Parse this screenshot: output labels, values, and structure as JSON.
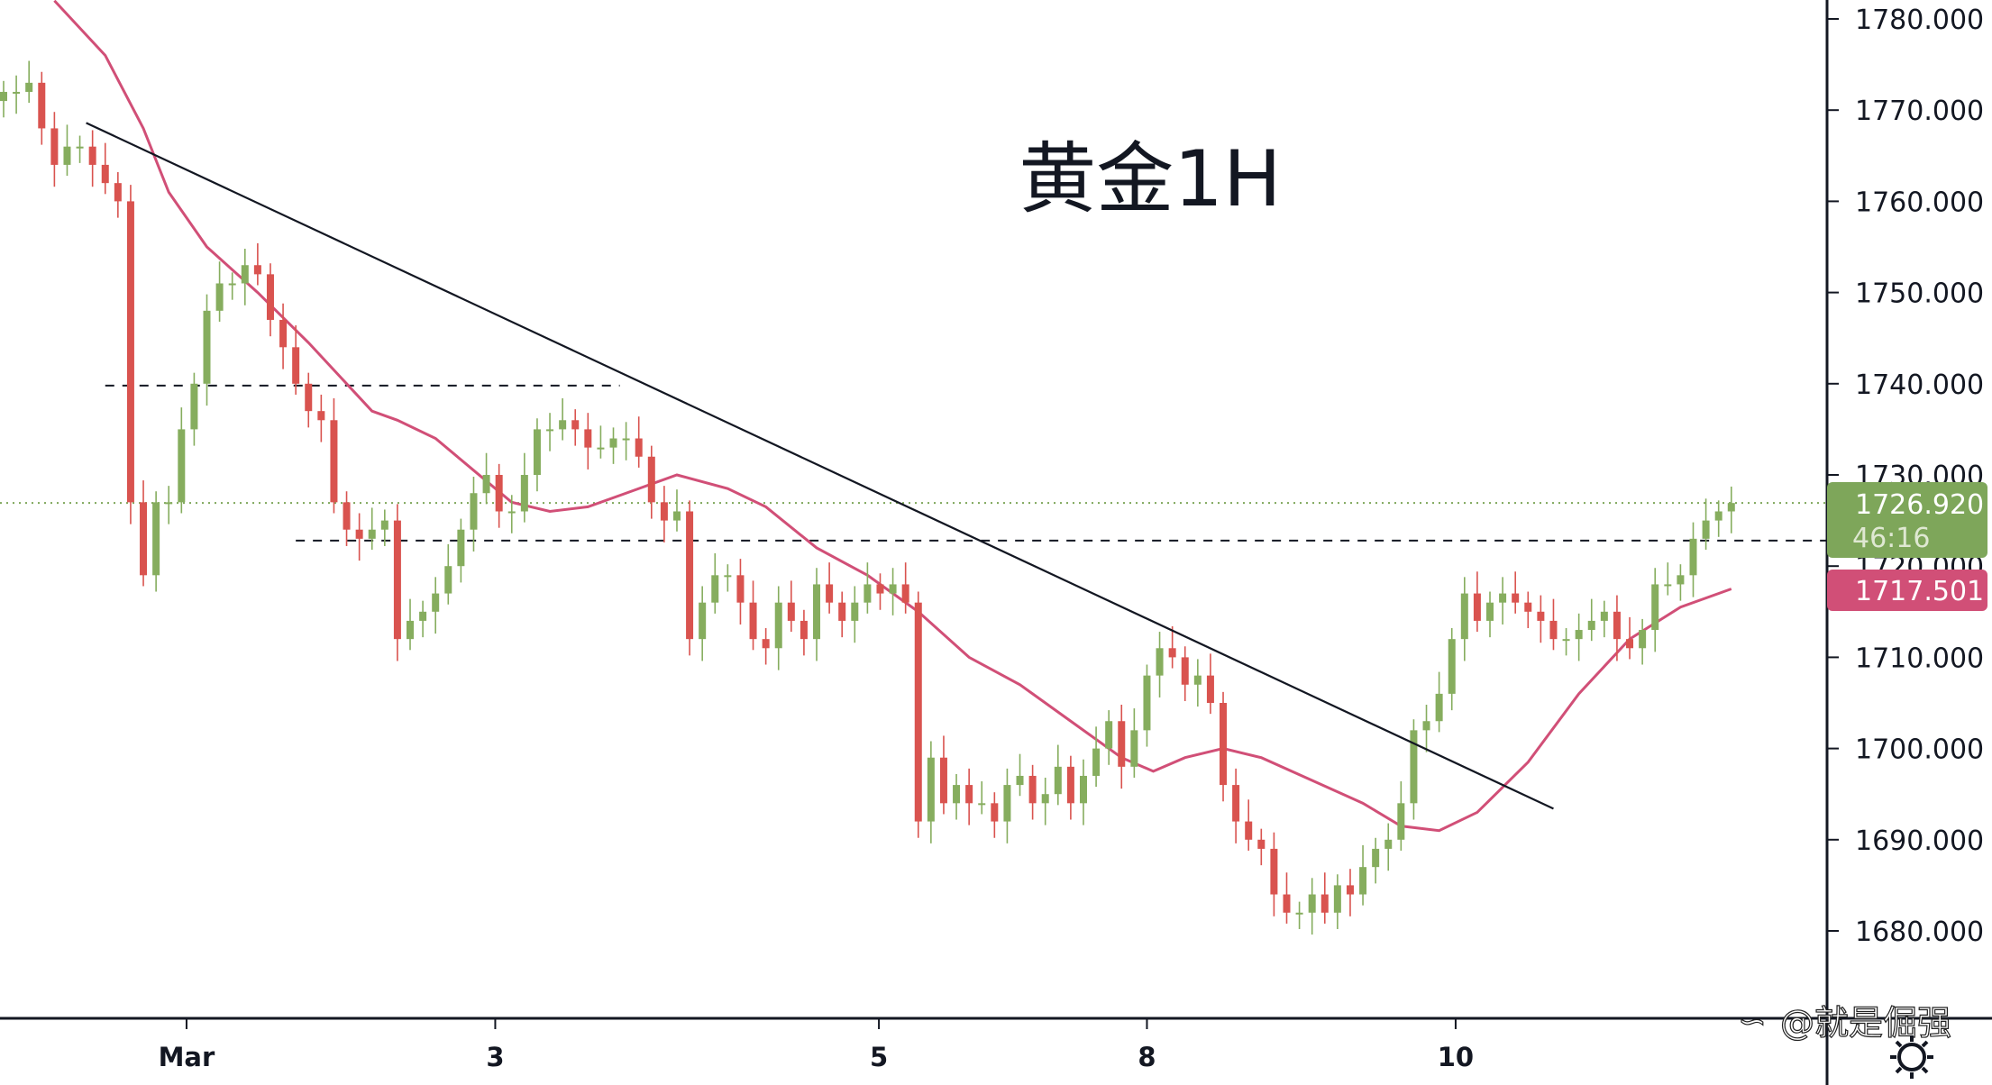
{
  "chart_data": {
    "type": "candlestick",
    "title": "黄金1H",
    "ylim": [
      1675,
      1782
    ],
    "y_ticks": [
      "1680.000",
      "1690.000",
      "1700.000",
      "1710.000",
      "1720.000",
      "1730.000",
      "1740.000",
      "1750.000",
      "1760.000",
      "1770.000",
      "1780.000"
    ],
    "x_ticks": [
      {
        "label": "Mar",
        "index": 14.4
      },
      {
        "label": "3",
        "index": 38.7
      },
      {
        "label": "5",
        "index": 68.9
      },
      {
        "label": "8",
        "index": 90.0
      },
      {
        "label": "10",
        "index": 114.3
      }
    ],
    "closes": [
      1772,
      1772,
      1773,
      1768,
      1764,
      1766,
      1766,
      1764,
      1762,
      1760,
      1727,
      1719,
      1727,
      1727,
      1735,
      1740,
      1748,
      1751,
      1751,
      1753,
      1752,
      1747,
      1744,
      1740,
      1737,
      1736,
      1727,
      1724,
      1723,
      1724,
      1725,
      1712,
      1714,
      1715,
      1717,
      1720,
      1724,
      1728,
      1730,
      1726,
      1726,
      1730,
      1735,
      1735,
      1736,
      1735,
      1733,
      1733,
      1734,
      1734,
      1732,
      1727,
      1725,
      1726,
      1712,
      1716,
      1719,
      1719,
      1716,
      1712,
      1711,
      1716,
      1714,
      1712,
      1718,
      1716,
      1714,
      1716,
      1718,
      1717,
      1718,
      1716,
      1692,
      1699,
      1694,
      1696,
      1694,
      1694,
      1692,
      1696,
      1697,
      1694,
      1695,
      1698,
      1694,
      1697,
      1700,
      1703,
      1698,
      1702,
      1708,
      1711,
      1710,
      1707,
      1708,
      1705,
      1696,
      1692,
      1690,
      1689,
      1684,
      1682,
      1682,
      1684,
      1682,
      1685,
      1684,
      1687,
      1689,
      1690,
      1694,
      1702,
      1703,
      1706,
      1712,
      1717,
      1714,
      1716,
      1717,
      1716,
      1715,
      1714,
      1712,
      1712,
      1713,
      1714,
      1715,
      1712,
      1711,
      1713,
      1718,
      1718,
      1719,
      1723,
      1725,
      1726,
      1726.92
    ],
    "moving_average": [
      [
        4,
        1782
      ],
      [
        8,
        1776
      ],
      [
        11,
        1768
      ],
      [
        13,
        1761
      ],
      [
        16,
        1755
      ],
      [
        20,
        1750
      ],
      [
        24,
        1744.5
      ],
      [
        27,
        1740
      ],
      [
        29,
        1737
      ],
      [
        31,
        1736
      ],
      [
        34,
        1734
      ],
      [
        37,
        1730.5
      ],
      [
        40,
        1727
      ],
      [
        43,
        1726
      ],
      [
        46,
        1726.5
      ],
      [
        49,
        1728
      ],
      [
        53,
        1730
      ],
      [
        57,
        1728.5
      ],
      [
        60,
        1726.5
      ],
      [
        64,
        1722
      ],
      [
        68,
        1719
      ],
      [
        72,
        1715
      ],
      [
        76,
        1710
      ],
      [
        80,
        1707
      ],
      [
        84,
        1703
      ],
      [
        88,
        1699
      ],
      [
        90.5,
        1697.5
      ],
      [
        93,
        1699
      ],
      [
        96,
        1700
      ],
      [
        99,
        1699
      ],
      [
        103,
        1696.5
      ],
      [
        107,
        1694
      ],
      [
        110,
        1691.5
      ],
      [
        113,
        1691
      ],
      [
        116,
        1693
      ],
      [
        120,
        1698.5
      ],
      [
        124,
        1706
      ],
      [
        128,
        1712
      ],
      [
        132,
        1715.5
      ],
      [
        136,
        1717.5
      ]
    ],
    "trendline": [
      [
        6.5,
        1768.6
      ],
      [
        122,
        1693.4
      ]
    ],
    "horizontal_levels": [
      {
        "price": 1739.8,
        "from": 8,
        "to": 48.5,
        "style": "dashed"
      },
      {
        "price": 1722.8,
        "from": 23,
        "to": 144,
        "style": "dashed"
      }
    ],
    "last_price": {
      "value": "1726.920",
      "countdown": "46:16",
      "color": "#7ea65a"
    },
    "ma_value": {
      "value": "1717.501",
      "color": "#d14f77"
    },
    "colors": {
      "up": "#86ad5e",
      "down": "#d9534f",
      "ma": "#d14f77"
    }
  },
  "watermark": "@就是倔强"
}
